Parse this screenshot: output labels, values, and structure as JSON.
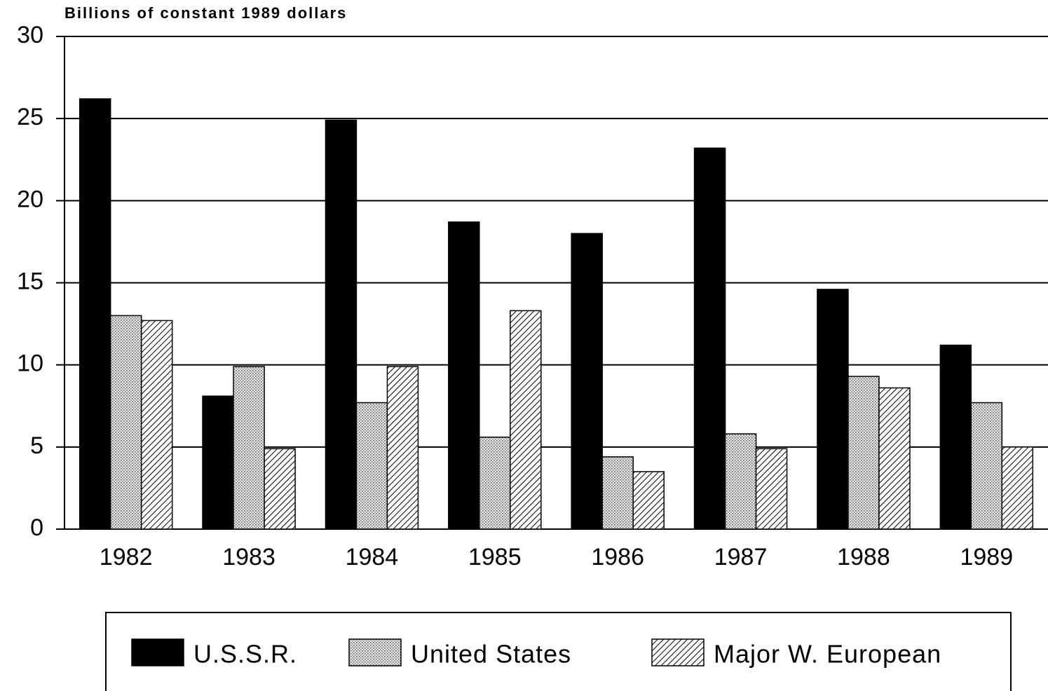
{
  "chart_data": {
    "type": "bar",
    "title": "Billions of constant 1989 dollars",
    "categories": [
      "1982",
      "1983",
      "1984",
      "1985",
      "1986",
      "1987",
      "1988",
      "1989"
    ],
    "series": [
      {
        "name": "U.S.S.R.",
        "color": "#000000",
        "pattern": "solid",
        "values": [
          26.2,
          8.1,
          24.9,
          18.7,
          18.0,
          23.2,
          14.6,
          11.2
        ]
      },
      {
        "name": "United States",
        "color": "#c8c8c8",
        "pattern": "dots",
        "values": [
          13.0,
          9.9,
          7.7,
          5.6,
          4.4,
          5.8,
          9.3,
          7.7
        ]
      },
      {
        "name": "Major W. European",
        "color": "#ffffff",
        "pattern": "hatch",
        "values": [
          12.7,
          4.9,
          9.9,
          13.3,
          3.5,
          4.9,
          8.6,
          5.0
        ]
      }
    ],
    "ylim": [
      0,
      30
    ],
    "yticks": [
      0,
      5,
      10,
      15,
      20,
      25,
      30
    ],
    "grid": true,
    "legend": "bottom"
  }
}
